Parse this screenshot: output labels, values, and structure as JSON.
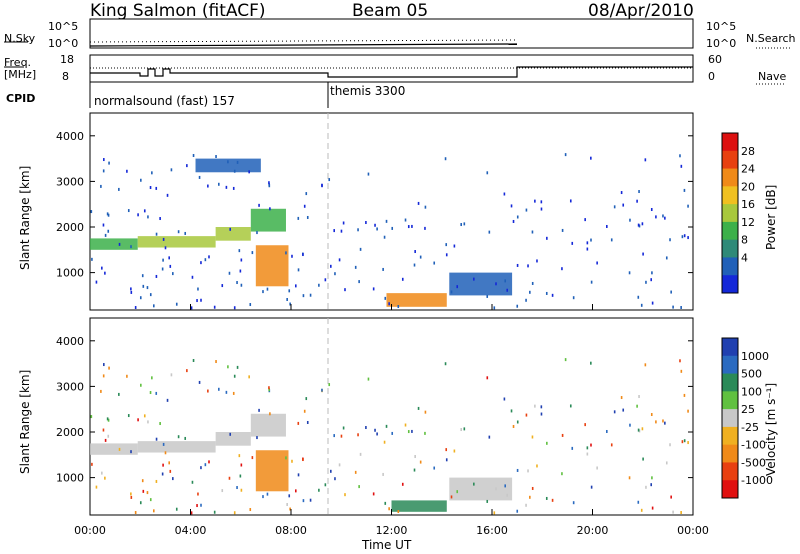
{
  "header": {
    "station": "King Salmon (fitACF)",
    "beam": "Beam 05",
    "date": "08/Apr/2010"
  },
  "info_panels": {
    "nsky_label": "N.Sky",
    "nsky_ticks": [
      "10^5",
      "10^0"
    ],
    "nsearch_label": "N.Search",
    "nsearch_ticks_right": [
      "10^5",
      "10^0"
    ],
    "freq_label": "Freq.",
    "freq_unit": "[MHz]",
    "freq_ticks": [
      "18",
      "8"
    ],
    "nave_label": "Nave",
    "nave_ticks": [
      "60",
      "0"
    ],
    "cpid_label": "CPID",
    "cpid_modes": [
      {
        "name": "normalsound (fast) 157",
        "start_hour": 0
      },
      {
        "name": "themis 3300",
        "start_hour": 9.6
      }
    ]
  },
  "chart_data": [
    {
      "type": "heatmap",
      "name": "power",
      "ylabel": "Slant Range [km]",
      "xlabel": "",
      "x_range_hours": [
        0,
        24
      ],
      "ylim": [
        180,
        4500
      ],
      "yticks": [
        1000,
        2000,
        3000,
        4000
      ],
      "colorbar": {
        "label": "Power [dB]",
        "ticks": [
          4,
          8,
          12,
          16,
          20,
          24,
          28
        ],
        "colors": [
          "#1428d8",
          "#2060b8",
          "#2f8a78",
          "#3cb04a",
          "#a8c83c",
          "#f0c020",
          "#f08a18",
          "#e84010",
          "#dc1010"
        ]
      },
      "features": [
        {
          "hours": [
            0.0,
            1.9
          ],
          "range_km": [
            1500,
            1750
          ],
          "level_db": 14
        },
        {
          "hours": [
            1.9,
            5.0
          ],
          "range_km": [
            1550,
            1800
          ],
          "level_db": 16
        },
        {
          "hours": [
            5.0,
            6.4
          ],
          "range_km": [
            1700,
            2000
          ],
          "level_db": 18
        },
        {
          "hours": [
            6.4,
            7.8
          ],
          "range_km": [
            1900,
            2400
          ],
          "level_db": 14
        },
        {
          "hours": [
            4.2,
            6.8
          ],
          "range_km": [
            3200,
            3500
          ],
          "level_db": 6
        },
        {
          "hours": [
            6.6,
            7.9
          ],
          "range_km": [
            700,
            1600
          ],
          "level_db": 26
        },
        {
          "hours": [
            11.8,
            14.2
          ],
          "range_km": [
            250,
            550
          ],
          "level_db": 24
        },
        {
          "hours": [
            14.3,
            16.8
          ],
          "range_km": [
            500,
            1000
          ],
          "level_db": 6
        }
      ]
    },
    {
      "type": "heatmap",
      "name": "velocity",
      "ylabel": "Slant Range [km]",
      "xlabel": "Time UT",
      "x_range_hours": [
        0,
        24
      ],
      "ylim": [
        180,
        4500
      ],
      "yticks": [
        1000,
        2000,
        3000,
        4000
      ],
      "xticks": [
        "00:00",
        "04:00",
        "08:00",
        "12:00",
        "16:00",
        "20:00",
        "00:00"
      ],
      "colorbar": {
        "label": "Velocity [m s⁻¹]",
        "ticks": [
          1000,
          500,
          100,
          25,
          -25,
          -100,
          -500,
          -1000
        ],
        "colors": [
          "#2040b0",
          "#2a6ac0",
          "#2a8a58",
          "#60c040",
          "#c8c8c8",
          "#f0b020",
          "#f08a18",
          "#e84010",
          "#e01010"
        ]
      },
      "features": [
        {
          "hours": [
            0.0,
            1.9
          ],
          "range_km": [
            1500,
            1750
          ],
          "velocity": 0
        },
        {
          "hours": [
            1.9,
            5.0
          ],
          "range_km": [
            1550,
            1800
          ],
          "velocity": 0
        },
        {
          "hours": [
            5.0,
            6.4
          ],
          "range_km": [
            1700,
            2000
          ],
          "velocity": 0
        },
        {
          "hours": [
            6.4,
            7.8
          ],
          "range_km": [
            1900,
            2400
          ],
          "velocity": 0
        },
        {
          "hours": [
            6.6,
            7.9
          ],
          "range_km": [
            700,
            1600
          ],
          "velocity": -300
        },
        {
          "hours": [
            12.0,
            14.2
          ],
          "range_km": [
            250,
            500
          ],
          "velocity": 150
        },
        {
          "hours": [
            14.3,
            16.8
          ],
          "range_km": [
            500,
            1000
          ],
          "velocity": 0
        }
      ]
    }
  ]
}
